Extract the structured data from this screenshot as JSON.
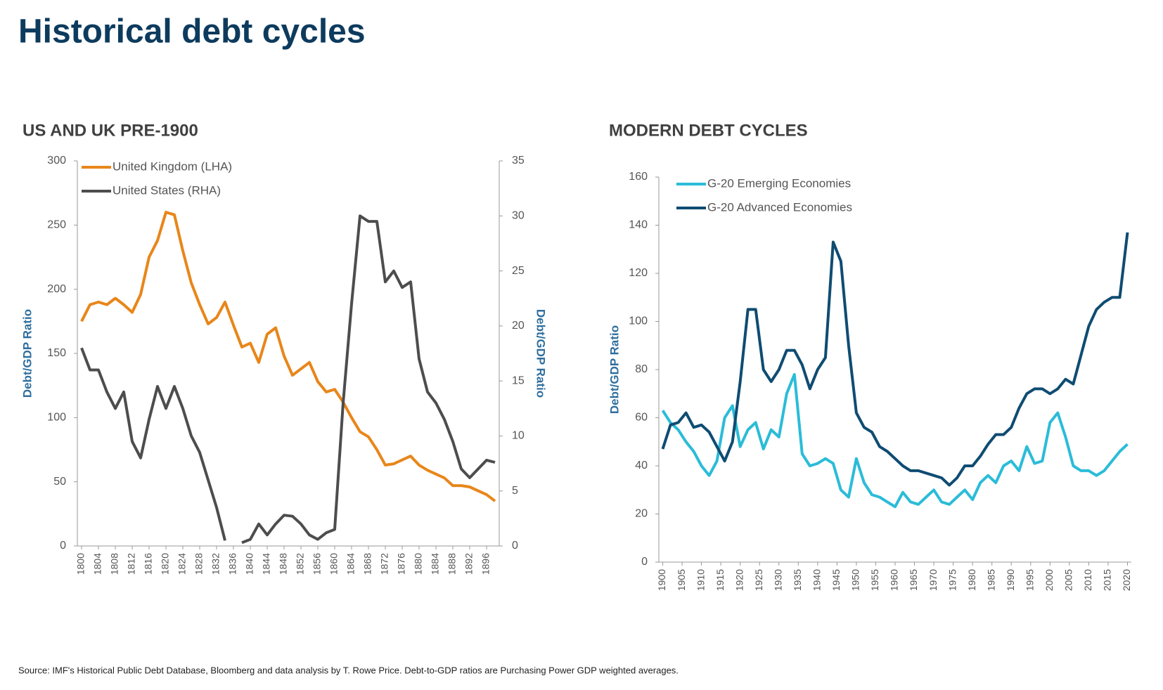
{
  "title": "Historical debt cycles",
  "chart_data": [
    {
      "type": "line",
      "title": "US AND UK PRE-1900",
      "ylabel": "Debt/GDP Ratio",
      "y2label": "Debt/GDP Ratio",
      "x": [
        1800,
        1802,
        1804,
        1806,
        1808,
        1810,
        1812,
        1814,
        1816,
        1818,
        1820,
        1822,
        1824,
        1826,
        1828,
        1830,
        1832,
        1834,
        1836,
        1838,
        1840,
        1842,
        1844,
        1846,
        1848,
        1850,
        1852,
        1854,
        1856,
        1858,
        1860,
        1862,
        1864,
        1866,
        1868,
        1870,
        1872,
        1874,
        1876,
        1878,
        1880,
        1882,
        1884,
        1886,
        1888,
        1890,
        1892,
        1894,
        1896,
        1898
      ],
      "series": [
        {
          "name": "United Kingdom (LHA)",
          "color": "#e8861a",
          "values": [
            175,
            188,
            190,
            188,
            193,
            188,
            182,
            196,
            225,
            238,
            260,
            258,
            230,
            205,
            188,
            173,
            178,
            190,
            172,
            155,
            158,
            143,
            165,
            170,
            148,
            133,
            138,
            143,
            128,
            120,
            122,
            112,
            100,
            89,
            85,
            75,
            63,
            64,
            67,
            70,
            63,
            59,
            56,
            53,
            47,
            47,
            46,
            43,
            40,
            35
          ]
        },
        {
          "name": "United States (RHA)",
          "color": "#4d4d4d",
          "axis": "y2",
          "values": [
            18,
            16,
            16,
            14,
            12.5,
            14,
            9.5,
            8,
            11.5,
            14.5,
            12.5,
            14.5,
            12.5,
            10,
            8.5,
            6,
            3.5,
            0.5,
            null,
            0.3,
            0.6,
            2,
            1,
            2,
            2.8,
            2.7,
            2,
            1,
            0.6,
            1.2,
            1.5,
            13,
            22,
            30,
            29.5,
            29.5,
            24,
            25,
            23.5,
            24,
            17,
            14,
            13,
            11.5,
            9.5,
            7,
            6.2,
            7,
            7.8,
            7.6
          ]
        }
      ],
      "xlim": [
        1799,
        1899
      ],
      "xticks": [
        1800,
        1804,
        1808,
        1812,
        1816,
        1820,
        1824,
        1828,
        1832,
        1836,
        1840,
        1844,
        1848,
        1852,
        1856,
        1860,
        1864,
        1868,
        1872,
        1876,
        1880,
        1884,
        1888,
        1892,
        1896
      ],
      "ylim": [
        0,
        300
      ],
      "yticks": [
        0,
        50,
        100,
        150,
        200,
        250,
        300
      ],
      "y2lim": [
        0,
        35
      ],
      "y2ticks": [
        0,
        5,
        10,
        15,
        20,
        25,
        30,
        35
      ],
      "legend": "upper left",
      "grid": false
    },
    {
      "type": "line",
      "title": "MODERN DEBT CYCLES",
      "ylabel": "Debt/GDP Ratio",
      "x": [
        1900,
        1902,
        1904,
        1906,
        1908,
        1910,
        1912,
        1914,
        1916,
        1918,
        1920,
        1922,
        1924,
        1926,
        1928,
        1930,
        1932,
        1934,
        1936,
        1938,
        1940,
        1942,
        1944,
        1946,
        1948,
        1950,
        1952,
        1954,
        1956,
        1958,
        1960,
        1962,
        1964,
        1966,
        1968,
        1970,
        1972,
        1974,
        1976,
        1978,
        1980,
        1982,
        1984,
        1986,
        1988,
        1990,
        1992,
        1994,
        1996,
        1998,
        2000,
        2002,
        2004,
        2006,
        2008,
        2010,
        2012,
        2014,
        2016,
        2018,
        2020
      ],
      "series": [
        {
          "name": "G-20 Emerging Economies",
          "color": "#2bbcd8",
          "values": [
            63,
            58,
            55,
            50,
            46,
            40,
            36,
            42,
            60,
            65,
            48,
            55,
            58,
            47,
            55,
            52,
            70,
            78,
            45,
            40,
            41,
            43,
            41,
            30,
            27,
            43,
            33,
            28,
            27,
            25,
            23,
            29,
            25,
            24,
            27,
            30,
            25,
            24,
            27,
            30,
            26,
            33,
            36,
            33,
            40,
            42,
            38,
            48,
            41,
            42,
            58,
            62,
            52,
            40,
            38,
            38,
            36,
            38,
            42,
            46,
            49
          ]
        },
        {
          "name": "G-20 Advanced Economies",
          "color": "#0f4c72",
          "values": [
            47,
            57,
            58,
            62,
            56,
            57,
            54,
            48,
            42,
            50,
            75,
            105,
            105,
            80,
            75,
            80,
            88,
            88,
            82,
            72,
            80,
            85,
            133,
            125,
            90,
            62,
            56,
            54,
            48,
            46,
            43,
            40,
            38,
            38,
            37,
            36,
            35,
            32,
            35,
            40,
            40,
            44,
            49,
            53,
            53,
            56,
            64,
            70,
            72,
            72,
            70,
            72,
            76,
            74,
            86,
            98,
            105,
            108,
            110,
            110,
            137
          ]
        }
      ],
      "xlim": [
        1899,
        2021
      ],
      "xticks": [
        1900,
        1905,
        1910,
        1915,
        1920,
        1925,
        1930,
        1935,
        1940,
        1945,
        1950,
        1955,
        1960,
        1965,
        1970,
        1975,
        1980,
        1985,
        1990,
        1995,
        2000,
        2005,
        2010,
        2015,
        2020
      ],
      "ylim": [
        0,
        160
      ],
      "yticks": [
        0,
        20,
        40,
        60,
        80,
        100,
        120,
        140,
        160
      ],
      "legend": "upper left",
      "grid": false
    }
  ],
  "source": "Source: IMF's Historical Public Debt Database, Bloomberg and data analysis by T. Rowe Price. Debt-to-GDP ratios are Purchasing Power GDP weighted averages."
}
